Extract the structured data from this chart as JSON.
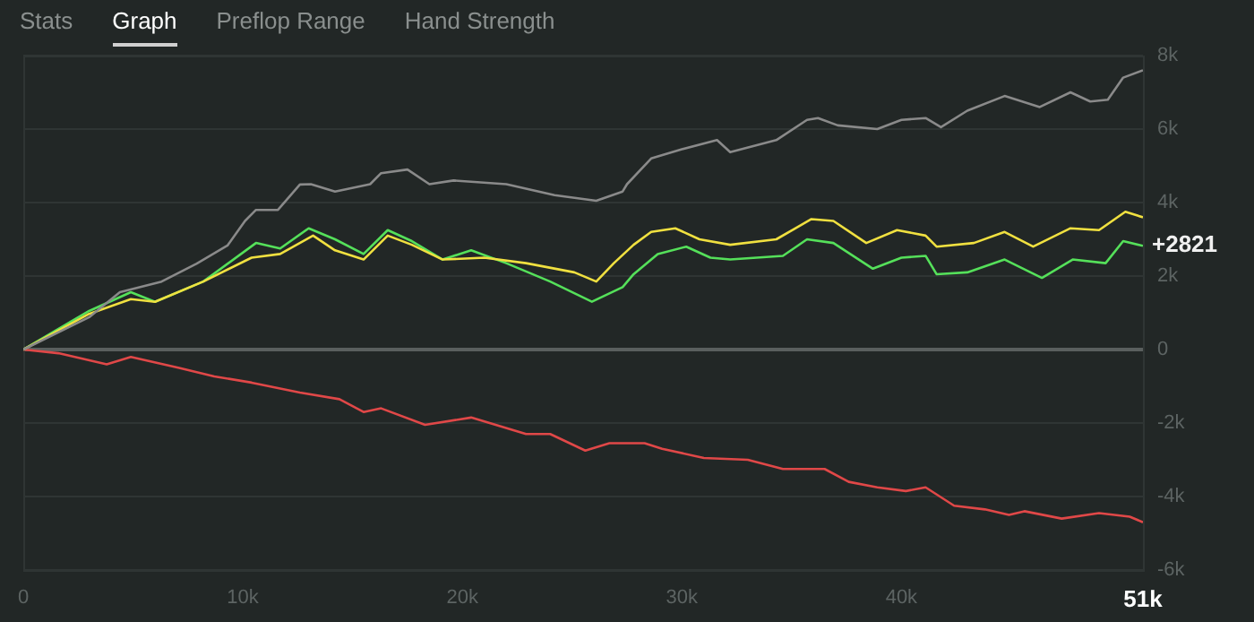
{
  "chart_data": {
    "type": "line",
    "xlim": [
      0,
      51000
    ],
    "ylim": [
      -6000,
      8000
    ],
    "xticks": [
      0,
      {
        "value": 10000,
        "label": "10k"
      },
      {
        "value": 20000,
        "label": "20k"
      },
      {
        "value": 30000,
        "label": "30k"
      },
      {
        "value": 40000,
        "label": "40k"
      },
      {
        "value": 51000,
        "label": "51k"
      }
    ],
    "yticks": [
      {
        "value": -6000,
        "label": "-6k"
      },
      {
        "value": -4000,
        "label": "-4k"
      },
      {
        "value": -2000,
        "label": "-2k"
      },
      0,
      {
        "value": 2000,
        "label": "2k"
      },
      {
        "value": 4000,
        "label": "4k"
      },
      {
        "value": 6000,
        "label": "6k"
      },
      {
        "value": 8000,
        "label": "8k"
      }
    ],
    "grid": "y",
    "legend": false,
    "marker": "none",
    "line_style": "solid",
    "annotations": [
      "Stats",
      "Graph",
      "Preflop Range",
      "Hand Strength",
      {
        "text": "+2821",
        "x": 51000,
        "y": 2821
      }
    ],
    "series": [
      {
        "color": "#8a8a8a",
        "x": [
          0,
          3000,
          4400,
          6300,
          7900,
          9300,
          10100,
          10600,
          11600,
          12600,
          13100,
          14200,
          15800,
          16300,
          17500,
          18500,
          19600,
          22000,
          24200,
          26100,
          27300,
          27500,
          28600,
          30000,
          31600,
          32200,
          34300,
          35700,
          36200,
          37100,
          38900,
          40000,
          41100,
          41800,
          43000,
          44700,
          46300,
          47700,
          48600,
          49400,
          50100,
          51000
        ],
        "values": [
          0,
          880,
          1560,
          1850,
          2340,
          2830,
          3500,
          3800,
          3800,
          4490,
          4500,
          4300,
          4500,
          4800,
          4900,
          4500,
          4600,
          4500,
          4200,
          4050,
          4300,
          4500,
          5200,
          5450,
          5700,
          5370,
          5700,
          6250,
          6300,
          6100,
          6000,
          6250,
          6300,
          6050,
          6500,
          6900,
          6600,
          7000,
          6750,
          6800,
          7400,
          7600
        ]
      },
      {
        "color": "#f0e040",
        "x": [
          0,
          3000,
          4900,
          6000,
          8200,
          10400,
          11700,
          13200,
          14200,
          15500,
          16600,
          17700,
          19100,
          21000,
          22900,
          25100,
          26100,
          26900,
          27800,
          28600,
          29700,
          30800,
          32200,
          34300,
          35900,
          36900,
          38400,
          39800,
          41100,
          41600,
          43300,
          44700,
          46000,
          47700,
          49000,
          50200,
          51000
        ],
        "values": [
          0,
          970,
          1370,
          1300,
          1850,
          2500,
          2600,
          3100,
          2700,
          2450,
          3100,
          2850,
          2450,
          2500,
          2350,
          2100,
          1850,
          2350,
          2850,
          3200,
          3300,
          3000,
          2850,
          3000,
          3550,
          3500,
          2900,
          3250,
          3100,
          2800,
          2900,
          3200,
          2800,
          3300,
          3250,
          3750,
          3600
        ]
      },
      {
        "color": "#55e05a",
        "x": [
          0,
          3000,
          4900,
          6000,
          8200,
          10600,
          11700,
          13000,
          14200,
          15500,
          16600,
          17700,
          19100,
          20400,
          22000,
          24000,
          25900,
          27300,
          27800,
          28900,
          30200,
          31300,
          32200,
          34600,
          35700,
          36900,
          38700,
          40000,
          41100,
          41600,
          43000,
          44700,
          46400,
          47800,
          49300,
          50100,
          51000
        ],
        "values": [
          0,
          1050,
          1560,
          1300,
          1850,
          2900,
          2750,
          3300,
          3000,
          2600,
          3250,
          2950,
          2450,
          2700,
          2350,
          1850,
          1300,
          1700,
          2050,
          2600,
          2800,
          2500,
          2450,
          2550,
          3000,
          2900,
          2200,
          2500,
          2550,
          2050,
          2100,
          2450,
          1950,
          2450,
          2350,
          2950,
          2821
        ]
      },
      {
        "color": "#e04848",
        "x": [
          0,
          1600,
          3800,
          4900,
          7100,
          8700,
          10400,
          12600,
          14400,
          15500,
          16300,
          18300,
          20400,
          22900,
          24000,
          25600,
          26700,
          28300,
          29100,
          31000,
          33000,
          34600,
          36500,
          37600,
          38900,
          40200,
          41100,
          42400,
          43800,
          44900,
          45600,
          47300,
          49000,
          50400,
          51000
        ],
        "values": [
          0,
          -100,
          -400,
          -200,
          -500,
          -730,
          -900,
          -1170,
          -1350,
          -1700,
          -1600,
          -2050,
          -1850,
          -2300,
          -2300,
          -2750,
          -2550,
          -2550,
          -2700,
          -2950,
          -3000,
          -3250,
          -3250,
          -3600,
          -3750,
          -3850,
          -3750,
          -4250,
          -4350,
          -4500,
          -4400,
          -4600,
          -4450,
          -4550,
          -4700
        ]
      }
    ]
  }
}
